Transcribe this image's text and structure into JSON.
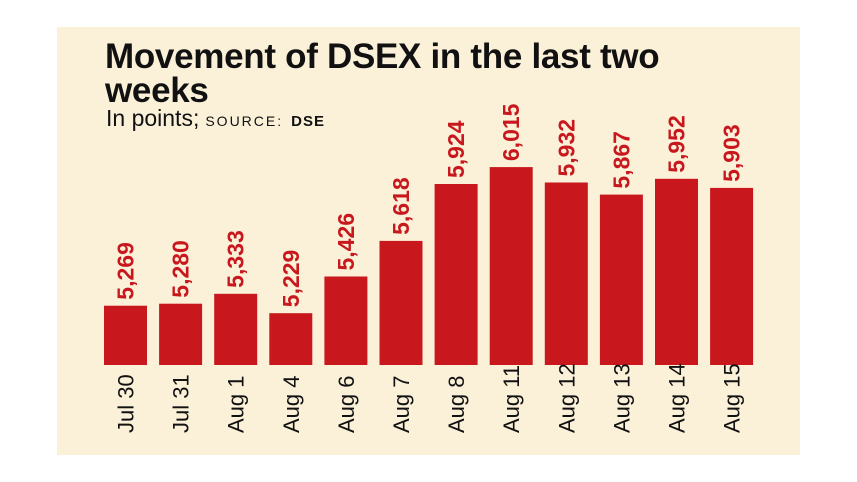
{
  "title": "Movement of DSEX in the last two weeks",
  "subtitle": {
    "units": "In points;",
    "source_label": "SOURCE:",
    "source_name": "DSE"
  },
  "colors": {
    "bar": "#c8171d",
    "label": "#c8171d",
    "tick": "#111111",
    "background": "#fbf1d9"
  },
  "chart_data": {
    "type": "bar",
    "title": "Movement of DSEX in the last two weeks",
    "ylabel": "In points",
    "xlabel": "",
    "categories": [
      "Jul 30",
      "Jul 31",
      "Aug 1",
      "Aug 4",
      "Aug 6",
      "Aug 7",
      "Aug 8",
      "Aug 11",
      "Aug 12",
      "Aug 13",
      "Aug 14",
      "Aug 15"
    ],
    "values": [
      5269,
      5280,
      5333,
      5229,
      5426,
      5618,
      5924,
      6015,
      5932,
      5867,
      5952,
      5903
    ],
    "value_labels": [
      "5,269",
      "5,280",
      "5,333",
      "5,229",
      "5,426",
      "5,618",
      "5,924",
      "6,015",
      "5,932",
      "5,867",
      "5,952",
      "5,903"
    ],
    "ylim": [
      4950,
      6150
    ],
    "grid": false,
    "legend": "none"
  }
}
